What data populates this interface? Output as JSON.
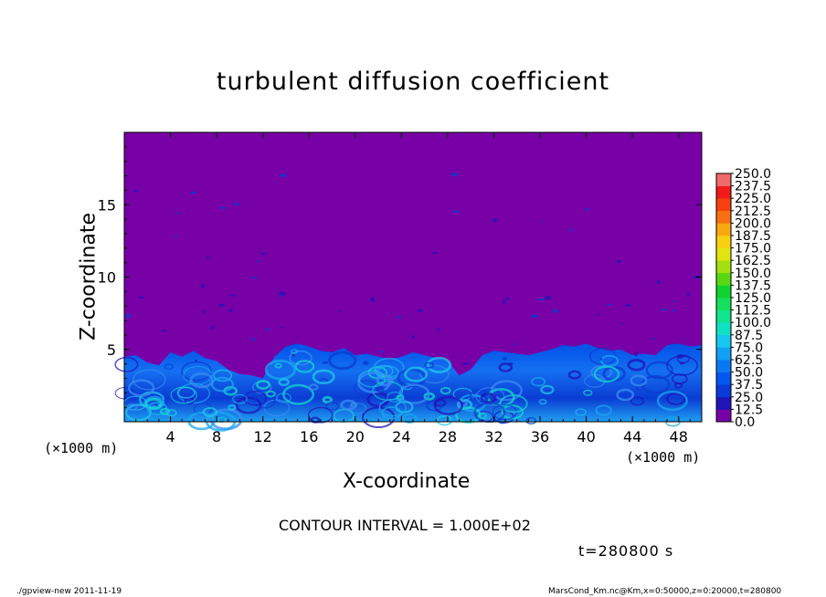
{
  "chart_data": {
    "type": "heatmap",
    "title": "turbulent diffusion coefficient",
    "xlabel": "X-coordinate",
    "ylabel": "Z-coordinate",
    "x_unit_left": "(×1000 m)",
    "x_unit_right": "(×1000 m)",
    "xlim": [
      0,
      50
    ],
    "ylim": [
      0,
      20
    ],
    "x_ticks": [
      "4",
      "8",
      "12",
      "16",
      "20",
      "24",
      "28",
      "32",
      "36",
      "40",
      "44",
      "48"
    ],
    "y_ticks": [
      "5",
      "10",
      "15"
    ],
    "colorbar_levels": [
      "0.0",
      "12.5",
      "25.0",
      "37.5",
      "50.0",
      "62.5",
      "75.0",
      "87.5",
      "100.0",
      "112.5",
      "125.0",
      "137.5",
      "150.0",
      "162.5",
      "175.0",
      "187.5",
      "200.0",
      "212.5",
      "225.0",
      "237.5",
      "250.0"
    ],
    "colorbar_colors": [
      "#7700a6",
      "#1f14b8",
      "#0a3bd6",
      "#0058ee",
      "#0a78f2",
      "#12a0f2",
      "#16c8ee",
      "#10e0c4",
      "#10e48c",
      "#14e05c",
      "#10d230",
      "#58d814",
      "#a4e010",
      "#e0e410",
      "#f8d010",
      "#f8a810",
      "#f87010",
      "#f84010",
      "#f01a1a",
      "#f06a6a"
    ],
    "boundary_layer_top": [
      4.5,
      4.6,
      4.1,
      3.9,
      4.8,
      4.5,
      4.9,
      4.4,
      4.2,
      3.6,
      3.3,
      3.2,
      3.0,
      4.5,
      5.2,
      5.4,
      5.2,
      4.9,
      4.8,
      5.1,
      4.6,
      4.7,
      4.5,
      4.3,
      4.5,
      4.8,
      4.6,
      4.4,
      4.2,
      3.2,
      3.6,
      4.6,
      4.9,
      4.8,
      4.7,
      4.6,
      4.8,
      5.0,
      5.3,
      5.2,
      5.4,
      5.1,
      4.9,
      5.0,
      4.6,
      4.7,
      4.6,
      5.3,
      5.4,
      5.2,
      5.3
    ],
    "contour_interval": "CONTOUR INTERVAL = 1.000E+02",
    "time": "t=280800 s"
  },
  "footer": {
    "left": "./gpview-new   2011-11-19",
    "right": "MarsCond_Km.nc@Km,x=0:50000,z=0:20000,t=280800"
  }
}
